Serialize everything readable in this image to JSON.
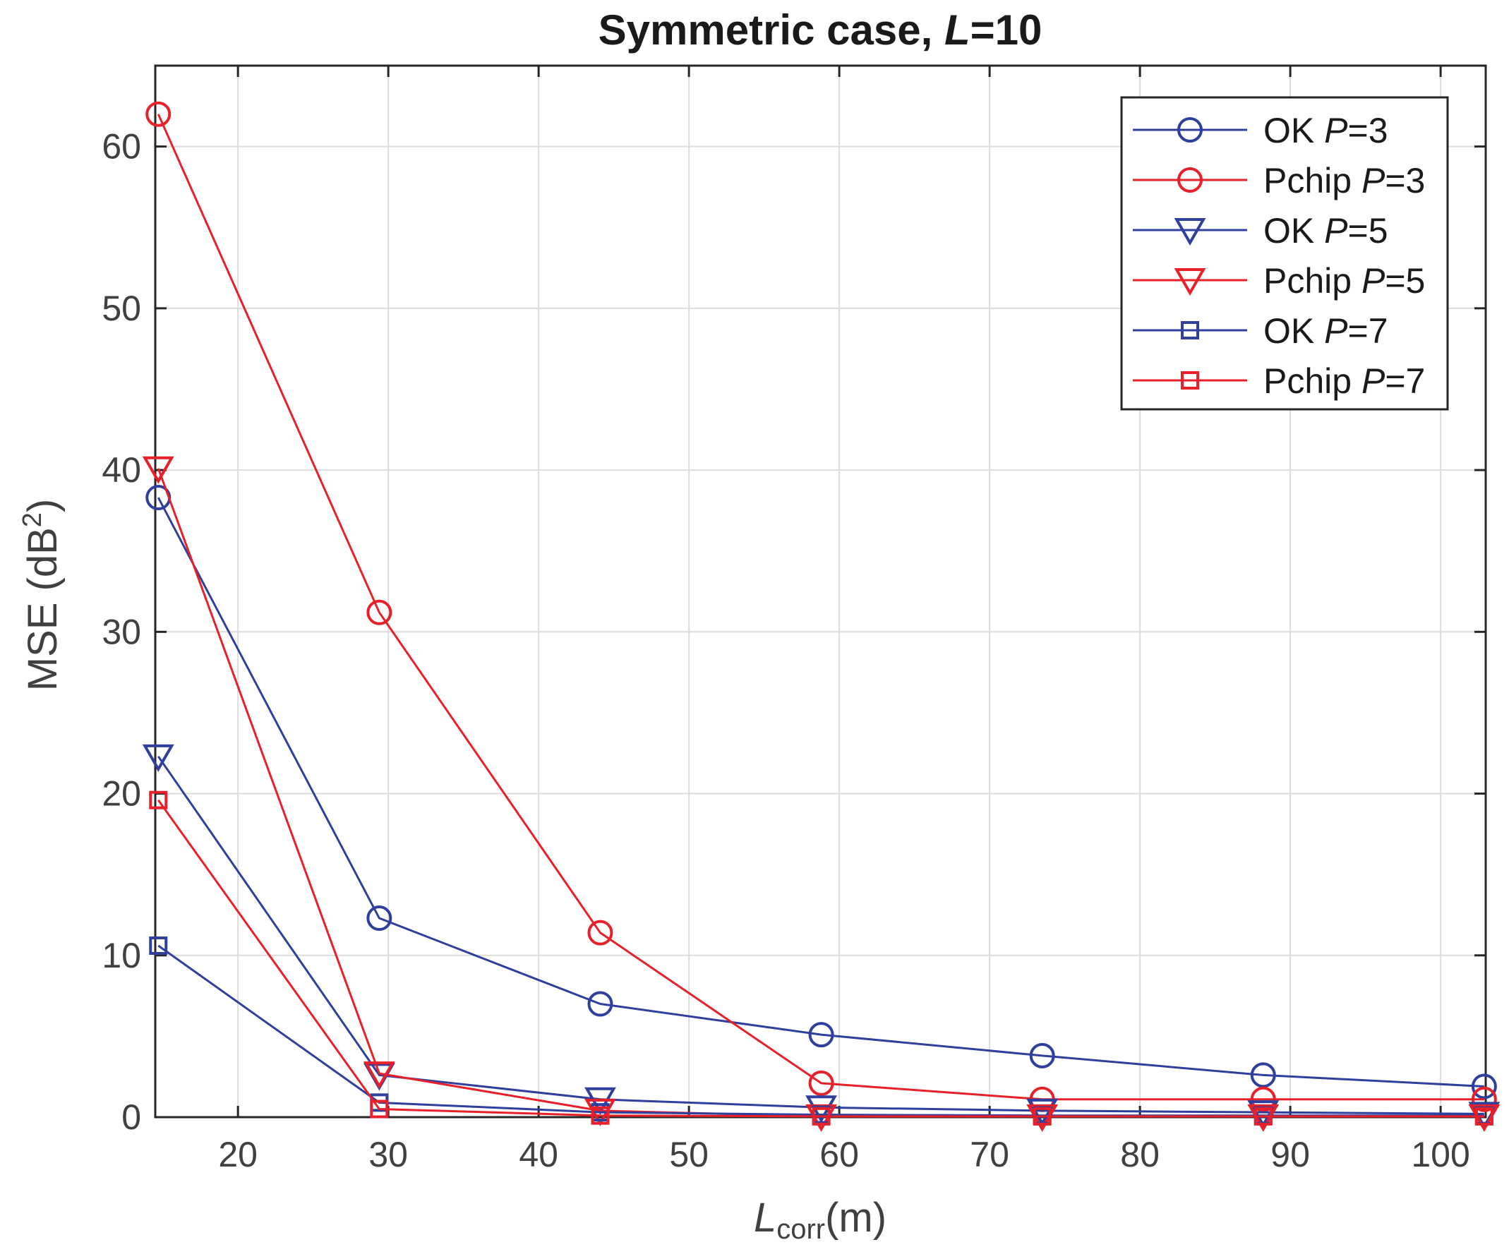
{
  "chart_data": {
    "type": "line",
    "title": "Symmetric case, L=10",
    "title_parts": {
      "prefix": "Symmetric case, ",
      "var": "L",
      "suffix": "=10"
    },
    "xlabel": "L_corr(m)",
    "xlabel_parts": {
      "var": "L",
      "sub": "corr",
      "unit": "(m)"
    },
    "ylabel": "MSE (dB²)",
    "ylabel_parts": {
      "text": "MSE (dB",
      "sup": "2",
      "close": ")"
    },
    "xlim": [
      14.5,
      103
    ],
    "ylim": [
      0,
      65
    ],
    "xticks": [
      20,
      30,
      40,
      50,
      60,
      70,
      80,
      90,
      100
    ],
    "yticks": [
      0,
      10,
      20,
      30,
      40,
      50,
      60
    ],
    "grid": true,
    "legend_position": "top-right",
    "x": [
      14.7,
      29.4,
      44.1,
      58.8,
      73.5,
      88.2,
      102.9
    ],
    "series": [
      {
        "name": "OK P=3",
        "label": "OK ",
        "pvar": "P",
        "pval": "=3",
        "color": "#2e3f9e",
        "marker": "circle",
        "values": [
          38.3,
          12.3,
          7.0,
          5.1,
          3.8,
          2.6,
          1.9
        ]
      },
      {
        "name": "Pchip P=3",
        "label": "Pchip ",
        "pvar": "P",
        "pval": "=3",
        "color": "#e8202a",
        "marker": "circle",
        "values": [
          62.0,
          31.2,
          11.4,
          2.1,
          1.1,
          1.1,
          1.1
        ]
      },
      {
        "name": "OK P=5",
        "label": "OK ",
        "pvar": "P",
        "pval": "=5",
        "color": "#2e3f9e",
        "marker": "triangle-down",
        "values": [
          22.3,
          2.6,
          1.1,
          0.6,
          0.4,
          0.3,
          0.2
        ]
      },
      {
        "name": "Pchip P=5",
        "label": "Pchip ",
        "pvar": "P",
        "pval": "=5",
        "color": "#e8202a",
        "marker": "triangle-down",
        "values": [
          40.1,
          2.7,
          0.4,
          0.05,
          0.05,
          0.05,
          0.05
        ]
      },
      {
        "name": "OK P=7",
        "label": "OK ",
        "pvar": "P",
        "pval": "=7",
        "color": "#2e3f9e",
        "marker": "square",
        "values": [
          10.6,
          0.9,
          0.3,
          0.15,
          0.1,
          0.1,
          0.1
        ]
      },
      {
        "name": "Pchip P=7",
        "label": "Pchip ",
        "pvar": "P",
        "pval": "=7",
        "color": "#e8202a",
        "marker": "square",
        "values": [
          19.6,
          0.5,
          0.1,
          0.05,
          0.05,
          0.05,
          0.05
        ]
      }
    ]
  }
}
